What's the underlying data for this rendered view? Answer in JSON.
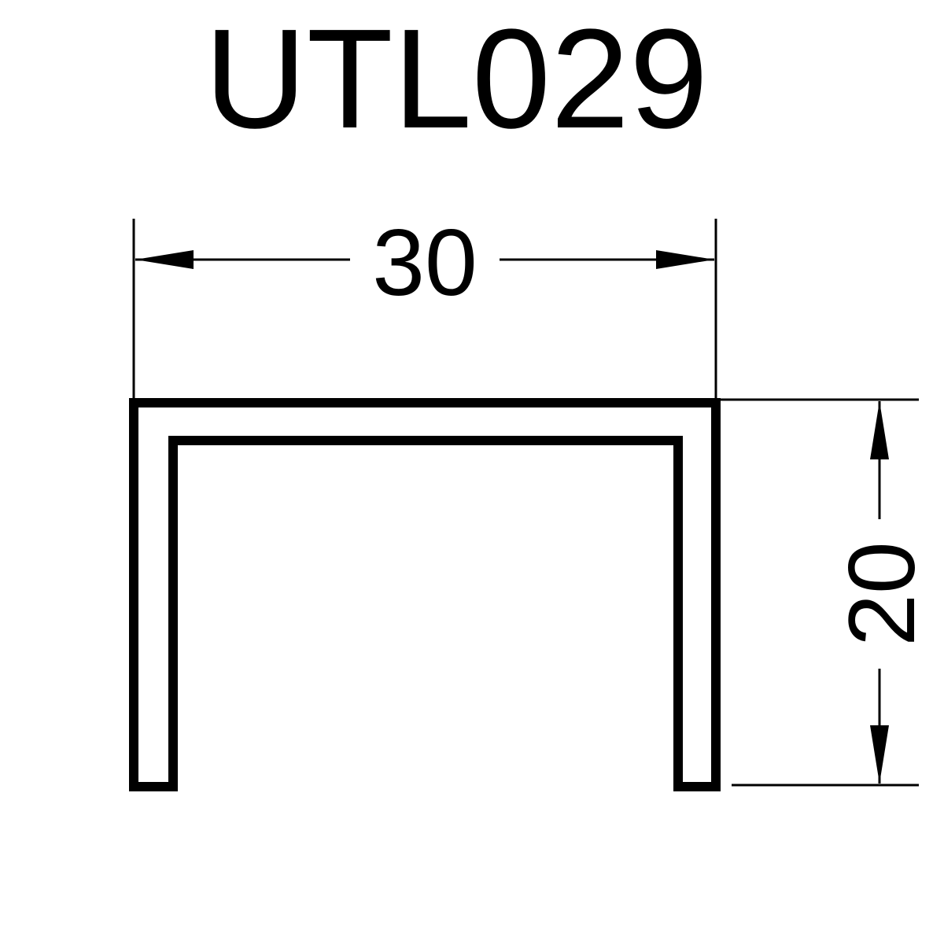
{
  "title": "UTL029",
  "dimensions": {
    "width_label": "30",
    "height_label": "20"
  },
  "colors": {
    "ink": "#000000",
    "background": "#ffffff"
  }
}
